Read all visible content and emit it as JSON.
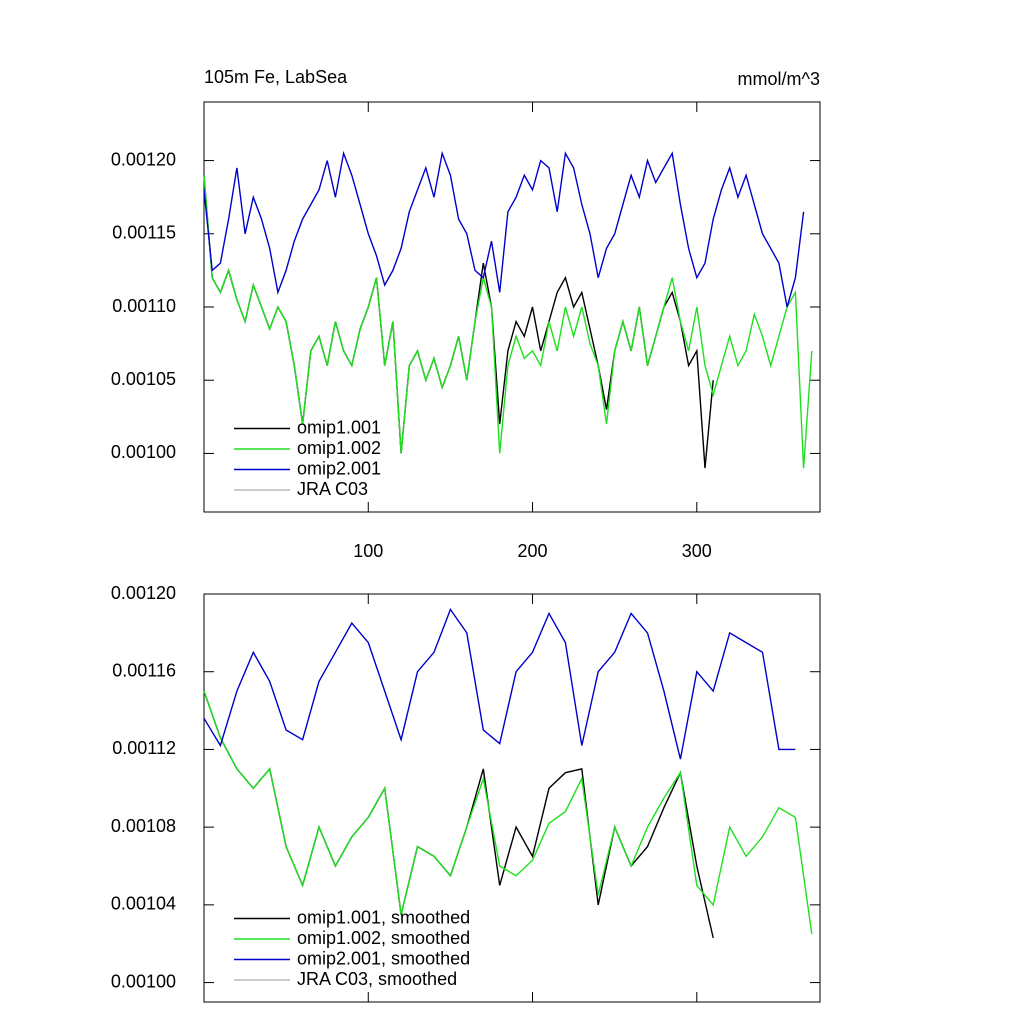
{
  "chart_data": [
    {
      "type": "line",
      "title": "105m Fe, LabSea",
      "units": "mmol/m^3",
      "x": [
        0,
        5,
        10,
        15,
        20,
        25,
        30,
        35,
        40,
        45,
        50,
        55,
        60,
        65,
        70,
        75,
        80,
        85,
        90,
        95,
        100,
        105,
        110,
        115,
        120,
        125,
        130,
        135,
        140,
        145,
        150,
        155,
        160,
        165,
        170,
        175,
        180,
        185,
        190,
        195,
        200,
        205,
        210,
        215,
        220,
        225,
        230,
        235,
        240,
        245,
        250,
        255,
        260,
        265,
        270,
        275,
        280,
        285,
        290,
        295,
        300,
        305,
        310,
        315,
        320,
        325,
        330,
        335,
        340,
        345,
        350,
        355,
        360,
        365,
        370
      ],
      "xlim": [
        0,
        375
      ],
      "xticks": [
        100,
        200,
        300
      ],
      "ylim": [
        0.00096,
        0.00124
      ],
      "yticks": [
        {
          "value": 0.001,
          "label": "0.00100"
        },
        {
          "value": 0.00105,
          "label": "0.00105"
        },
        {
          "value": 0.0011,
          "label": "0.00110"
        },
        {
          "value": 0.00115,
          "label": "0.00115"
        },
        {
          "value": 0.0012,
          "label": "0.00120"
        }
      ],
      "legend": "lower left",
      "series": [
        {
          "name": "omip1.001",
          "color": "#000000",
          "values": [
            0.00119,
            0.00112,
            0.00111,
            0.001125,
            0.001105,
            0.00109,
            0.001115,
            0.0011,
            0.001085,
            0.0011,
            0.00109,
            0.00106,
            0.00102,
            0.00107,
            0.00108,
            0.00106,
            0.00109,
            0.00107,
            0.00106,
            0.001085,
            0.0011,
            0.00112,
            0.00106,
            0.00109,
            0.001,
            0.00106,
            0.00107,
            0.00105,
            0.001065,
            0.001045,
            0.00106,
            0.00108,
            0.00105,
            0.00109,
            0.00113,
            0.0011,
            0.00102,
            0.00107,
            0.00109,
            0.00108,
            0.0011,
            0.00107,
            0.00109,
            0.00111,
            0.00112,
            0.0011,
            0.00111,
            0.001085,
            0.00106,
            0.00103,
            0.00107,
            0.00109,
            0.00107,
            0.0011,
            0.00106,
            0.00108,
            0.0011,
            0.00111,
            0.00109,
            0.00106,
            0.00107,
            0.00099,
            0.00105,
            null,
            null,
            null,
            null,
            null,
            null,
            null,
            null,
            null,
            null,
            null,
            null
          ]
        },
        {
          "name": "omip1.002",
          "color": "#1fe01f",
          "values": [
            0.00119,
            0.00112,
            0.00111,
            0.001125,
            0.001105,
            0.00109,
            0.001115,
            0.0011,
            0.001085,
            0.0011,
            0.00109,
            0.00106,
            0.00102,
            0.00107,
            0.00108,
            0.00106,
            0.00109,
            0.00107,
            0.00106,
            0.001085,
            0.0011,
            0.00112,
            0.00106,
            0.00109,
            0.001,
            0.00106,
            0.00107,
            0.00105,
            0.001065,
            0.001045,
            0.00106,
            0.00108,
            0.00105,
            0.00109,
            0.00112,
            0.0011,
            0.001,
            0.00106,
            0.00108,
            0.001065,
            0.00107,
            0.00106,
            0.00109,
            0.00107,
            0.0011,
            0.00108,
            0.0011,
            0.001075,
            0.00106,
            0.00102,
            0.00107,
            0.00109,
            0.00107,
            0.0011,
            0.00106,
            0.00108,
            0.0011,
            0.00112,
            0.00109,
            0.00107,
            0.0011,
            0.00106,
            0.00104,
            0.00106,
            0.00108,
            0.00106,
            0.00107,
            0.001095,
            0.00108,
            0.00106,
            0.00108,
            0.0011,
            0.00111,
            0.00099,
            0.00107
          ]
        },
        {
          "name": "omip2.001",
          "color": "#0000cc",
          "values": [
            0.00118,
            0.001125,
            0.00113,
            0.00116,
            0.001195,
            0.00115,
            0.001175,
            0.00116,
            0.00114,
            0.00111,
            0.001125,
            0.001145,
            0.00116,
            0.00117,
            0.00118,
            0.0012,
            0.001175,
            0.001205,
            0.00119,
            0.00117,
            0.00115,
            0.001135,
            0.001115,
            0.001125,
            0.00114,
            0.001165,
            0.00118,
            0.001195,
            0.001175,
            0.001205,
            0.00119,
            0.00116,
            0.00115,
            0.001125,
            0.00112,
            0.001145,
            0.00111,
            0.001165,
            0.001175,
            0.00119,
            0.00118,
            0.0012,
            0.001195,
            0.001165,
            0.001205,
            0.001195,
            0.00117,
            0.00115,
            0.00112,
            0.00114,
            0.00115,
            0.00117,
            0.00119,
            0.001175,
            0.0012,
            0.001185,
            0.001195,
            0.001205,
            0.00117,
            0.00114,
            0.00112,
            0.00113,
            0.00116,
            0.00118,
            0.001195,
            0.001175,
            0.00119,
            0.00117,
            0.00115,
            0.00114,
            0.00113,
            0.0011,
            0.00112,
            0.001165,
            null
          ]
        },
        {
          "name": "JRA C03",
          "color": "#bbbbbb",
          "values": [
            null,
            null,
            null,
            null,
            null,
            null,
            null,
            null,
            null,
            null,
            null,
            null,
            null,
            null,
            null,
            null,
            null,
            null,
            null,
            null,
            null,
            null,
            null,
            null,
            null,
            null,
            null,
            null,
            null,
            null,
            null,
            null,
            null,
            null,
            null,
            null,
            null,
            null,
            null,
            null,
            null,
            null,
            null,
            null,
            null,
            null,
            null,
            null,
            null,
            null,
            null,
            null,
            null,
            null,
            null,
            null,
            null,
            null,
            null,
            null,
            null,
            null,
            null,
            null,
            null,
            null,
            null,
            null,
            null,
            null,
            null,
            null,
            null,
            null,
            null
          ]
        }
      ]
    },
    {
      "type": "line",
      "x": [
        0,
        10,
        20,
        30,
        40,
        50,
        60,
        70,
        80,
        90,
        100,
        110,
        120,
        130,
        140,
        150,
        160,
        170,
        180,
        190,
        200,
        210,
        220,
        230,
        240,
        250,
        260,
        270,
        280,
        290,
        300,
        310,
        320,
        330,
        340,
        350,
        360,
        370
      ],
      "xlim": [
        0,
        375
      ],
      "xticks": [
        100,
        200,
        300
      ],
      "ylim": [
        0.00099,
        0.0012
      ],
      "yticks": [
        {
          "value": 0.001,
          "label": "0.00100"
        },
        {
          "value": 0.00104,
          "label": "0.00104"
        },
        {
          "value": 0.00108,
          "label": "0.00108"
        },
        {
          "value": 0.00112,
          "label": "0.00112"
        },
        {
          "value": 0.00116,
          "label": "0.00116"
        },
        {
          "value": 0.0012,
          "label": "0.00120"
        }
      ],
      "legend": "lower left",
      "series": [
        {
          "name": "omip1.001, smoothed",
          "color": "#000000",
          "values": [
            0.00115,
            0.001126,
            0.00111,
            0.0011,
            0.00111,
            0.00107,
            0.00105,
            0.00108,
            0.00106,
            0.001075,
            0.001085,
            0.0011,
            0.001035,
            0.00107,
            0.001065,
            0.001055,
            0.00108,
            0.00111,
            0.00105,
            0.00108,
            0.001065,
            0.0011,
            0.001108,
            0.00111,
            0.00104,
            0.00108,
            0.00106,
            0.00107,
            0.00109,
            0.001108,
            0.00106,
            0.001023,
            null,
            null,
            null,
            null,
            null,
            null
          ]
        },
        {
          "name": "omip1.002, smoothed",
          "color": "#1fe01f",
          "values": [
            0.00115,
            0.001126,
            0.00111,
            0.0011,
            0.00111,
            0.00107,
            0.00105,
            0.00108,
            0.00106,
            0.001075,
            0.001085,
            0.0011,
            0.001035,
            0.00107,
            0.001065,
            0.001055,
            0.00108,
            0.001105,
            0.00106,
            0.001055,
            0.001063,
            0.001082,
            0.001088,
            0.001105,
            0.001045,
            0.00108,
            0.00106,
            0.00108,
            0.001095,
            0.001108,
            0.00105,
            0.00104,
            0.00108,
            0.001065,
            0.001075,
            0.00109,
            0.001085,
            0.001025
          ]
        },
        {
          "name": "omip2.001, smoothed",
          "color": "#0000cc",
          "values": [
            0.001136,
            0.001122,
            0.00115,
            0.00117,
            0.001155,
            0.00113,
            0.001125,
            0.001155,
            0.00117,
            0.001185,
            0.001175,
            0.00115,
            0.001125,
            0.00116,
            0.00117,
            0.001192,
            0.00118,
            0.00113,
            0.001123,
            0.00116,
            0.00117,
            0.00119,
            0.001175,
            0.001122,
            0.00116,
            0.00117,
            0.00119,
            0.00118,
            0.00115,
            0.001115,
            0.00116,
            0.00115,
            0.00118,
            0.001175,
            0.00117,
            0.00112,
            0.00112,
            null
          ]
        },
        {
          "name": "JRA C03, smoothed",
          "color": "#bbbbbb",
          "values": [
            null,
            null,
            null,
            null,
            null,
            null,
            null,
            null,
            null,
            null,
            null,
            null,
            null,
            null,
            null,
            null,
            null,
            null,
            null,
            null,
            null,
            null,
            null,
            null,
            null,
            null,
            null,
            null,
            null,
            null,
            null,
            null,
            null,
            null,
            null,
            null,
            null,
            null
          ]
        }
      ]
    }
  ]
}
